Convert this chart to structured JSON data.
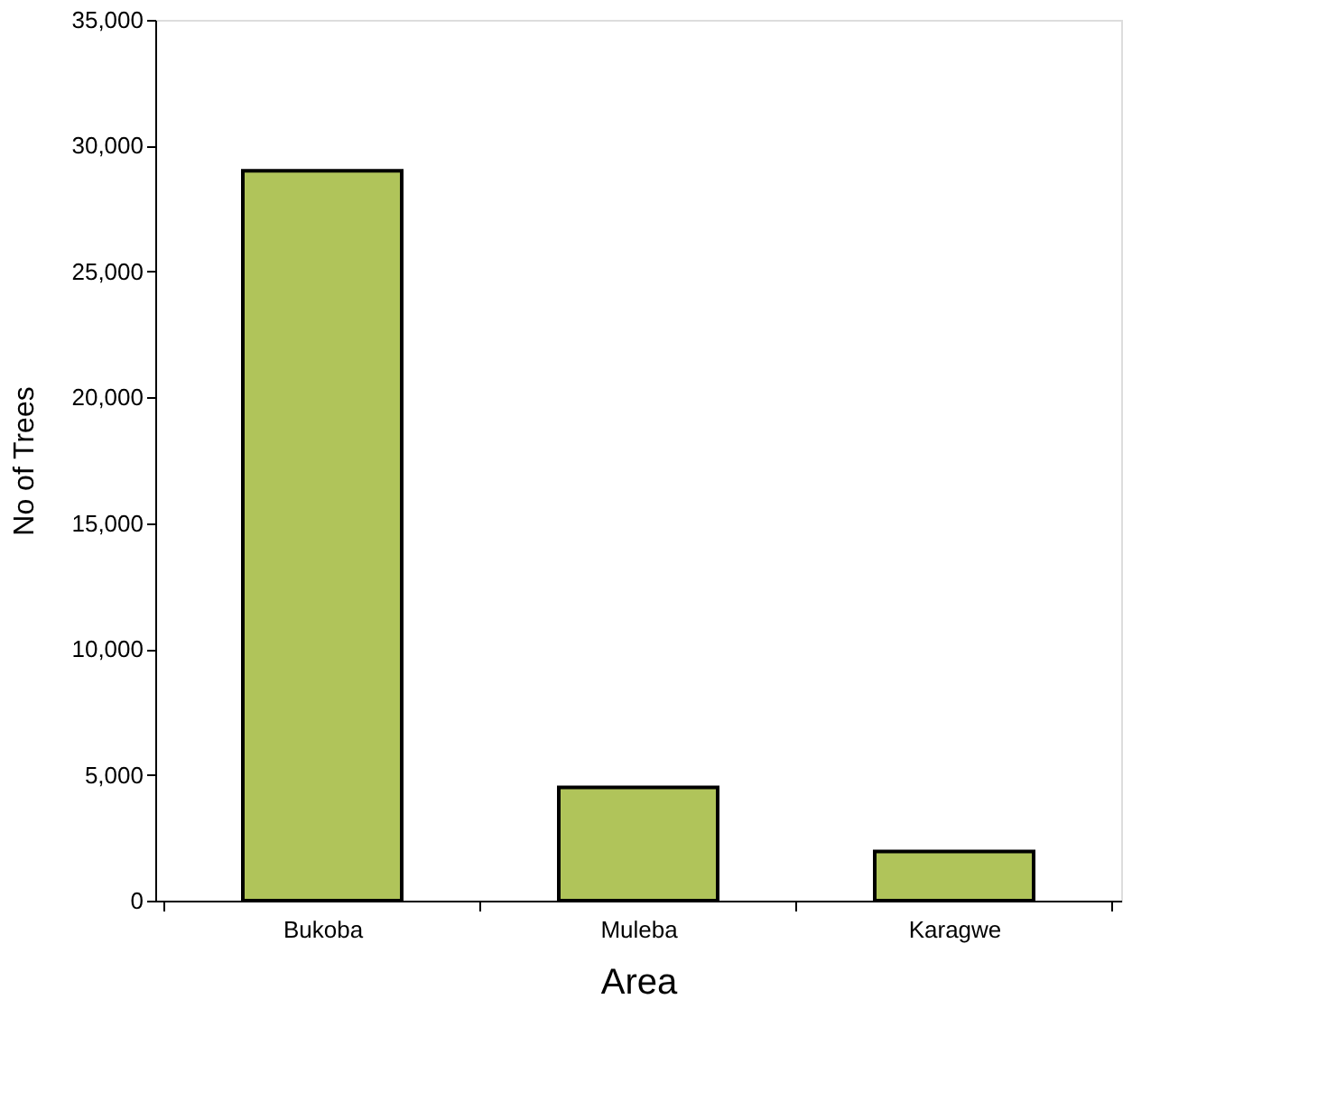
{
  "chart_data": {
    "type": "bar",
    "xlabel": "Area",
    "ylabel": "No of Trees",
    "categories": [
      "Bukoba",
      "Muleba",
      "Karagwe"
    ],
    "values": [
      29000,
      4500,
      1950
    ],
    "color": "#b0c45a",
    "ylim": [
      0,
      35000
    ],
    "yticks": [
      0,
      {
        "value": 5000,
        "label": "5,000"
      },
      {
        "value": 10000,
        "label": "10,000"
      },
      {
        "value": 15000,
        "label": "15,000"
      },
      {
        "value": 20000,
        "label": "20,000"
      },
      {
        "value": 25000,
        "label": "25,000"
      },
      {
        "value": 30000,
        "label": "30,000"
      },
      {
        "value": 35000,
        "label": "35,000"
      }
    ],
    "grid": false
  }
}
